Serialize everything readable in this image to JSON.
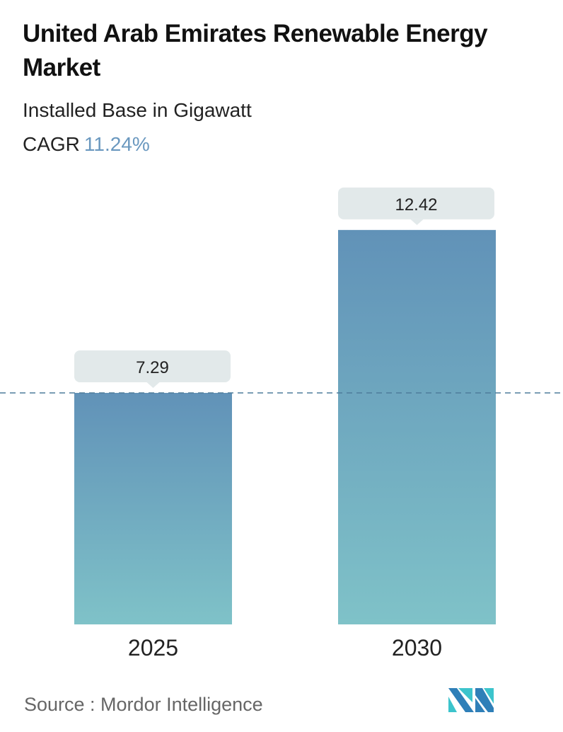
{
  "header": {
    "title": "United Arab Emirates Renewable Energy Market",
    "subtitle": "Installed Base in Gigawatt",
    "cagr_label": "CAGR",
    "cagr_value": "11.24%"
  },
  "chart_data": {
    "type": "bar",
    "title": "United Arab Emirates Renewable Energy Market",
    "ylabel": "Installed Base in Gigawatt",
    "categories": [
      "2025",
      "2030"
    ],
    "values": [
      7.29,
      12.42
    ],
    "data_labels": [
      "7.29",
      "12.42"
    ],
    "reference_line": 7.29,
    "grid": false,
    "colors": {
      "bar_top": "#6192b8",
      "bar_bottom": "#7fc2c8",
      "label_bg": "#e2e9ea",
      "dash": "#4f7d9c"
    }
  },
  "footer": {
    "source": "Source :  Mordor Intelligence"
  }
}
